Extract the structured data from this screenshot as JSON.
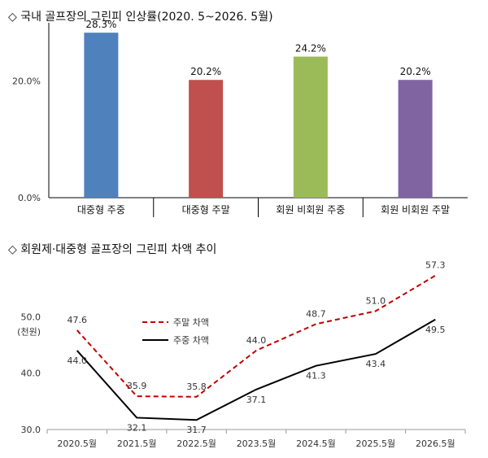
{
  "chart_data": [
    {
      "type": "bar",
      "title": "◇ 국내 골프장의 그린피 인상률(2020. 5~2026. 5월)",
      "categories": [
        "대중형 주중",
        "대중형 주말",
        "회원 비회원 주중",
        "회원 비회원 주말"
      ],
      "values": [
        28.3,
        20.2,
        24.2,
        20.2
      ],
      "value_labels": [
        "28.3%",
        "20.2%",
        "24.2%",
        "20.2%"
      ],
      "colors": [
        "#4f81bd",
        "#c0504d",
        "#9bbb59",
        "#8064a2"
      ],
      "ylim": [
        0,
        30
      ],
      "yticks": [
        0,
        20
      ],
      "ytick_labels": [
        "0.0%",
        "20.0%"
      ],
      "grid": false
    },
    {
      "type": "line",
      "title": "◇ 회원제·대중형 골프장의 그린피 차액 추이",
      "x": [
        "2020.5월",
        "2021.5월",
        "2022.5월",
        "2023.5월",
        "2024.5월",
        "2025.5월",
        "2026.5월"
      ],
      "series": [
        {
          "name": "주말 차액",
          "values": [
            47.6,
            35.9,
            35.8,
            44.0,
            48.7,
            51.0,
            57.3
          ],
          "labels": [
            "47.6",
            "35.9",
            "35.8",
            "44.0",
            "48.7",
            "51.0",
            "57.3"
          ],
          "color": "#c00000",
          "style": "dashed"
        },
        {
          "name": "주중 차액",
          "values": [
            44.0,
            32.1,
            31.7,
            37.1,
            41.3,
            43.4,
            49.5
          ],
          "labels": [
            "44.0",
            "32.1",
            "31.7",
            "37.1",
            "41.3",
            "43.4",
            "49.5"
          ],
          "color": "#000000",
          "style": "solid"
        }
      ],
      "ylim": [
        30,
        60
      ],
      "yticks": [
        30,
        40,
        50
      ],
      "ytick_labels": [
        "30.0",
        "40.0",
        "50.0"
      ],
      "yunit": "(천원)",
      "legend": "upper-left",
      "grid": false
    }
  ]
}
